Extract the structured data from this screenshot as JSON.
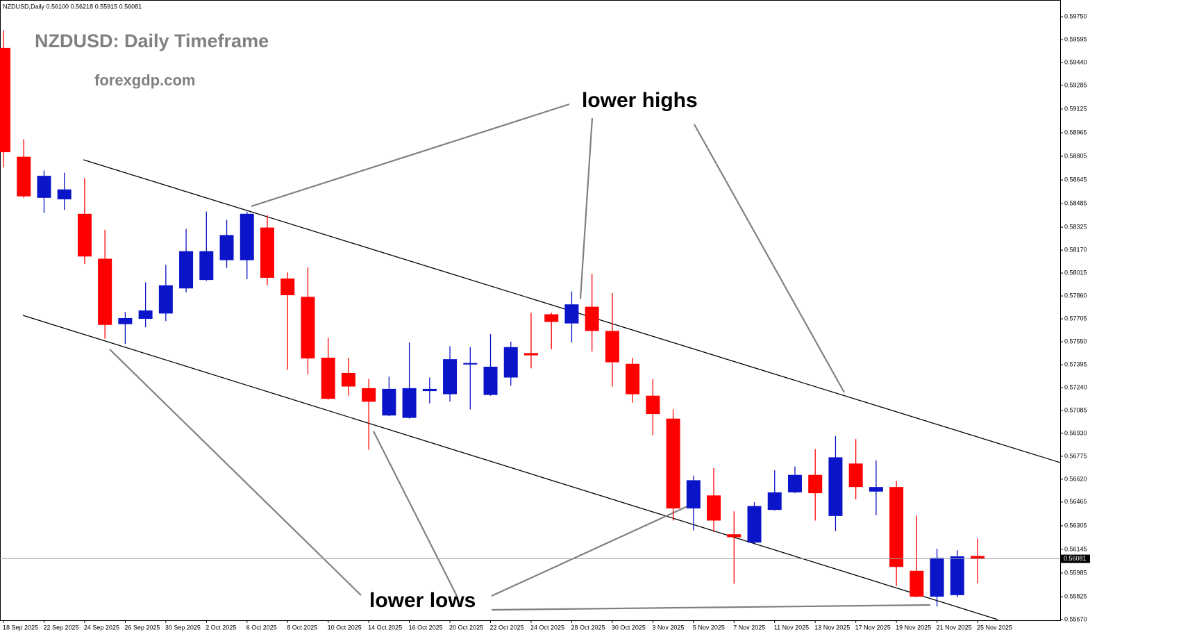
{
  "chart_data": {
    "type": "candlestick",
    "symbol_info": "NZDUSD,Daily  0.56100 0.56218 0.55915 0.56081",
    "title": "NZDUSD: Daily Timeframe",
    "subtitle": "forexgdp.com",
    "annotations": [
      "lower highs",
      "lower lows"
    ],
    "categories": [
      "18 Sep 2025",
      null,
      "22 Sep 2025",
      null,
      "24 Sep 2025",
      null,
      "26 Sep 2025",
      null,
      "30 Sep 2025",
      null,
      "2 Oct 2025",
      null,
      "6 Oct 2025",
      null,
      "8 Oct 2025",
      null,
      "10 Oct 2025",
      null,
      "14 Oct 2025",
      null,
      "16 Oct 2025",
      null,
      "20 Oct 2025",
      null,
      "22 Oct 2025",
      null,
      "24 Oct 2025",
      null,
      "28 Oct 2025",
      null,
      "30 Oct 2025",
      null,
      "3 Nov 2025",
      null,
      "5 Nov 2025",
      null,
      "7 Nov 2025",
      null,
      "11 Nov 2025",
      null,
      "13 Nov 2025",
      null,
      "17 Nov 2025",
      null,
      "19 Nov 2025",
      null,
      "21 Nov 2025",
      null,
      "25 Nov 2025"
    ],
    "open": [
      0.59539,
      0.58802,
      0.58524,
      0.58514,
      0.58416,
      0.58112,
      0.57669,
      0.57705,
      0.57741,
      0.57911,
      0.57968,
      0.58102,
      0.58102,
      0.58323,
      0.57978,
      0.57854,
      0.57442,
      0.57339,
      0.57236,
      0.57051,
      0.57035,
      0.57216,
      0.57195,
      0.57396,
      0.5719,
      0.57308,
      0.57473,
      0.57736,
      0.57674,
      0.57787,
      0.57623,
      0.57401,
      0.57185,
      0.5703,
      0.56422,
      0.5651,
      0.56247,
      0.56191,
      0.56412,
      0.56531,
      0.56649,
      0.56371,
      0.56726,
      0.56536,
      0.56567,
      0.56,
      0.55825,
      0.55835,
      0.561
    ],
    "high": [
      0.59657,
      0.58921,
      0.58709,
      0.58694,
      0.58658,
      0.58308,
      0.57751,
      0.57952,
      0.58071,
      0.58313,
      0.58431,
      0.58375,
      0.58431,
      0.58406,
      0.58019,
      0.58055,
      0.57576,
      0.57442,
      0.57298,
      0.57314,
      0.57545,
      0.57308,
      0.5752,
      0.57514,
      0.57602,
      0.57551,
      0.57746,
      0.57746,
      0.5789,
      0.58009,
      0.5788,
      0.57442,
      0.57298,
      0.57092,
      0.56644,
      0.56695,
      0.56402,
      0.56464,
      0.5668,
      0.56706,
      0.56824,
      0.56912,
      0.56891,
      0.56747,
      0.56608,
      0.56376,
      0.56149,
      0.56139,
      0.56218
    ],
    "low": [
      0.5873,
      0.58524,
      0.58421,
      0.58442,
      0.58076,
      0.57571,
      0.57535,
      0.57648,
      0.5769,
      0.57885,
      0.57963,
      0.5805,
      0.57973,
      0.57932,
      0.5736,
      0.57329,
      0.57159,
      0.57185,
      0.56819,
      0.57046,
      0.5703,
      0.57133,
      0.57144,
      0.57092,
      0.57185,
      0.57252,
      0.5737,
      0.57499,
      0.57545,
      0.57484,
      0.57247,
      0.57138,
      0.56917,
      0.5634,
      0.56273,
      0.56263,
      0.55913,
      0.5618,
      0.56407,
      0.56525,
      0.5634,
      0.56268,
      0.56484,
      0.56376,
      0.55897,
      0.5582,
      0.55758,
      0.5582,
      0.55915
    ],
    "close": [
      0.58833,
      0.58534,
      0.58673,
      0.58581,
      0.58127,
      0.57664,
      0.5771,
      0.57762,
      0.57932,
      0.58163,
      0.58163,
      0.58272,
      0.58416,
      0.57983,
      0.57865,
      0.57437,
      0.57164,
      0.57247,
      0.57144,
      0.57231,
      0.57236,
      0.57231,
      0.57432,
      0.57406,
      0.57381,
      0.57514,
      0.57458,
      0.57684,
      0.57803,
      0.57623,
      0.57411,
      0.57195,
      0.57061,
      0.56422,
      0.56613,
      0.5634,
      0.56227,
      0.56438,
      0.56531,
      0.56649,
      0.56525,
      0.56768,
      0.56567,
      0.56567,
      0.56026,
      0.55825,
      0.56088,
      0.56098,
      0.56081
    ],
    "up_color": "#0a14c8",
    "down_color": "#ff0000",
    "current_price": 0.56081,
    "ylim": [
      0.5567,
      0.5975
    ],
    "yticks": [
      {
        "value": 0.5975,
        "label": "0.59750"
      },
      0.59595,
      {
        "value": 0.5944,
        "label": "0.59440"
      },
      0.59285,
      0.59125,
      0.58965,
      0.58805,
      0.58645,
      0.58485,
      0.58325,
      {
        "value": 0.5817,
        "label": "0.58170"
      },
      0.58015,
      {
        "value": 0.5786,
        "label": "0.57860"
      },
      {
        "value": 0.57705,
        "label": "0.57705"
      },
      {
        "value": 0.5755,
        "label": "0.57550"
      },
      0.57395,
      {
        "value": 0.5724,
        "label": "0.57240"
      },
      0.57085,
      {
        "value": 0.5693,
        "label": "0.56930"
      },
      0.56775,
      {
        "value": 0.5662,
        "label": "0.56620"
      },
      0.56465,
      0.56305,
      0.56145,
      0.55985,
      0.55825,
      {
        "value": 0.5567,
        "label": "0.55670"
      }
    ]
  }
}
